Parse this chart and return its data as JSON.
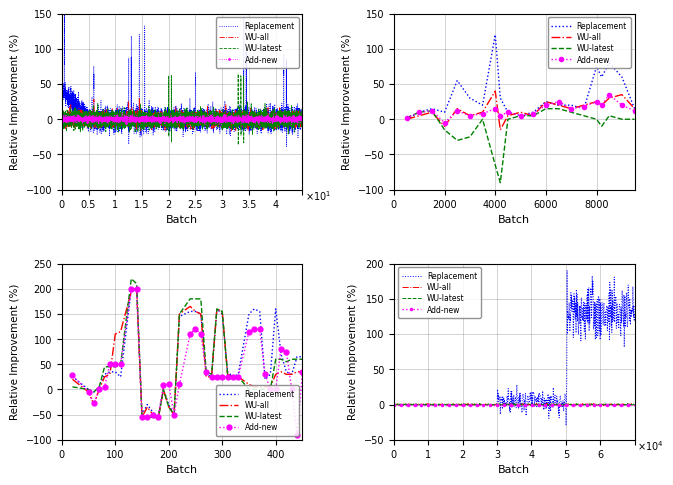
{
  "ylabel": "Relative Improvement (%)",
  "xlabel": "Batch",
  "legend_labels": [
    "Replacement",
    "WU-all",
    "WU-latest",
    "Add-new"
  ],
  "top_left": {
    "xlim": [
      0,
      45000
    ],
    "ylim": [
      -100,
      150
    ],
    "yticks": [
      -100,
      -50,
      0,
      50,
      100,
      150
    ],
    "xtick_exp": 10000,
    "exp_label": "\\times10^1"
  },
  "top_right": {
    "xlim": [
      0,
      9500
    ],
    "ylim": [
      -100,
      150
    ],
    "yticks": [
      -100,
      -50,
      0,
      50,
      100,
      150
    ],
    "xticks": [
      0,
      2000,
      4000,
      6000,
      8000
    ]
  },
  "bottom_left": {
    "xlim": [
      0,
      450
    ],
    "ylim": [
      -100,
      250
    ],
    "yticks": [
      -100,
      -50,
      0,
      50,
      100,
      150,
      200,
      250
    ],
    "xticks": [
      0,
      100,
      200,
      300,
      400
    ]
  },
  "bottom_right": {
    "xlim": [
      0,
      70000
    ],
    "ylim": [
      -50,
      200
    ],
    "yticks": [
      -50,
      0,
      50,
      100,
      150,
      200
    ],
    "xtick_exp": 10000,
    "exp_label": "\\times10^4"
  },
  "tr_replacement": [
    500,
    0,
    1000,
    10,
    1500,
    15,
    2000,
    10,
    2500,
    55,
    3000,
    30,
    3500,
    20,
    4000,
    120,
    4200,
    30,
    4500,
    10,
    5000,
    5,
    5500,
    10,
    6000,
    25,
    6500,
    20,
    7000,
    20,
    7500,
    15,
    8000,
    75,
    8200,
    60,
    8500,
    80,
    9000,
    60,
    9500,
    15
  ],
  "tr_wuall": [
    500,
    0,
    1000,
    5,
    1500,
    10,
    2000,
    -10,
    2500,
    15,
    3000,
    5,
    3500,
    10,
    4000,
    40,
    4200,
    -15,
    4500,
    5,
    5000,
    10,
    5500,
    5,
    6000,
    25,
    6500,
    20,
    7000,
    15,
    7500,
    20,
    8000,
    25,
    8200,
    20,
    8500,
    30,
    9000,
    35,
    9500,
    15
  ],
  "tr_wulatest": [
    500,
    2,
    1000,
    10,
    1500,
    12,
    2000,
    -15,
    2500,
    -30,
    3000,
    -25,
    3500,
    0,
    4000,
    -65,
    4200,
    -90,
    4500,
    0,
    5000,
    5,
    5500,
    5,
    6000,
    15,
    6500,
    15,
    7000,
    10,
    7500,
    5,
    8000,
    0,
    8200,
    -10,
    8500,
    5,
    9000,
    0,
    9500,
    0
  ],
  "tr_addnew": [
    500,
    2,
    1000,
    10,
    1500,
    12,
    2000,
    -5,
    2500,
    12,
    3000,
    5,
    3500,
    8,
    4000,
    15,
    4200,
    5,
    4500,
    10,
    5000,
    5,
    5500,
    8,
    6000,
    20,
    6500,
    25,
    7000,
    15,
    7500,
    18,
    8000,
    25,
    8200,
    20,
    8500,
    35,
    9000,
    20,
    9500,
    12
  ],
  "bl_replacement": [
    20,
    25,
    50,
    0,
    60,
    -5,
    70,
    5,
    80,
    30,
    90,
    35,
    100,
    35,
    110,
    25,
    130,
    200,
    140,
    195,
    150,
    -50,
    160,
    -30,
    170,
    -45,
    180,
    -55,
    190,
    0,
    200,
    -30,
    210,
    -50,
    220,
    145,
    240,
    155,
    250,
    155,
    260,
    150,
    270,
    30,
    280,
    25,
    290,
    160,
    300,
    150,
    310,
    35,
    320,
    25,
    330,
    30,
    350,
    150,
    360,
    160,
    370,
    155,
    380,
    20,
    390,
    30,
    400,
    160,
    410,
    70,
    420,
    35,
    430,
    30,
    440,
    65,
    450,
    65
  ],
  "bl_wuall": [
    20,
    20,
    50,
    -5,
    60,
    -30,
    70,
    0,
    80,
    25,
    90,
    30,
    100,
    110,
    110,
    115,
    130,
    195,
    140,
    200,
    150,
    -55,
    160,
    -35,
    170,
    -50,
    180,
    -60,
    190,
    0,
    200,
    -35,
    210,
    -50,
    220,
    150,
    240,
    165,
    250,
    155,
    260,
    150,
    270,
    25,
    280,
    25,
    290,
    160,
    300,
    155,
    310,
    30,
    320,
    25,
    330,
    25,
    350,
    10,
    360,
    5,
    370,
    5,
    380,
    5,
    390,
    5,
    400,
    30,
    410,
    35,
    420,
    30,
    430,
    30,
    440,
    35,
    450,
    35
  ],
  "bl_wulatest": [
    20,
    5,
    50,
    0,
    60,
    -5,
    70,
    5,
    80,
    45,
    90,
    45,
    100,
    45,
    110,
    50,
    130,
    220,
    140,
    210,
    150,
    -55,
    160,
    -55,
    170,
    -55,
    180,
    -60,
    190,
    0,
    200,
    -35,
    210,
    -50,
    220,
    150,
    240,
    180,
    250,
    180,
    260,
    180,
    270,
    35,
    280,
    30,
    290,
    160,
    300,
    155,
    310,
    30,
    320,
    25,
    330,
    25,
    350,
    0,
    360,
    0,
    370,
    0,
    380,
    0,
    390,
    0,
    400,
    60,
    410,
    60,
    420,
    55,
    430,
    60,
    440,
    60,
    450,
    60
  ],
  "bl_addnew": [
    20,
    28,
    50,
    -5,
    60,
    -28,
    70,
    0,
    80,
    5,
    90,
    50,
    100,
    50,
    110,
    50,
    130,
    200,
    140,
    200,
    150,
    -55,
    160,
    -55,
    170,
    -50,
    180,
    -55,
    190,
    8,
    200,
    10,
    210,
    -50,
    220,
    10,
    240,
    110,
    250,
    120,
    260,
    110,
    270,
    35,
    280,
    25,
    290,
    25,
    300,
    25,
    310,
    25,
    320,
    25,
    330,
    25,
    350,
    115,
    360,
    120,
    370,
    120,
    380,
    30,
    390,
    0,
    400,
    0,
    410,
    80,
    420,
    75,
    430,
    0,
    440,
    -90,
    450,
    35
  ]
}
